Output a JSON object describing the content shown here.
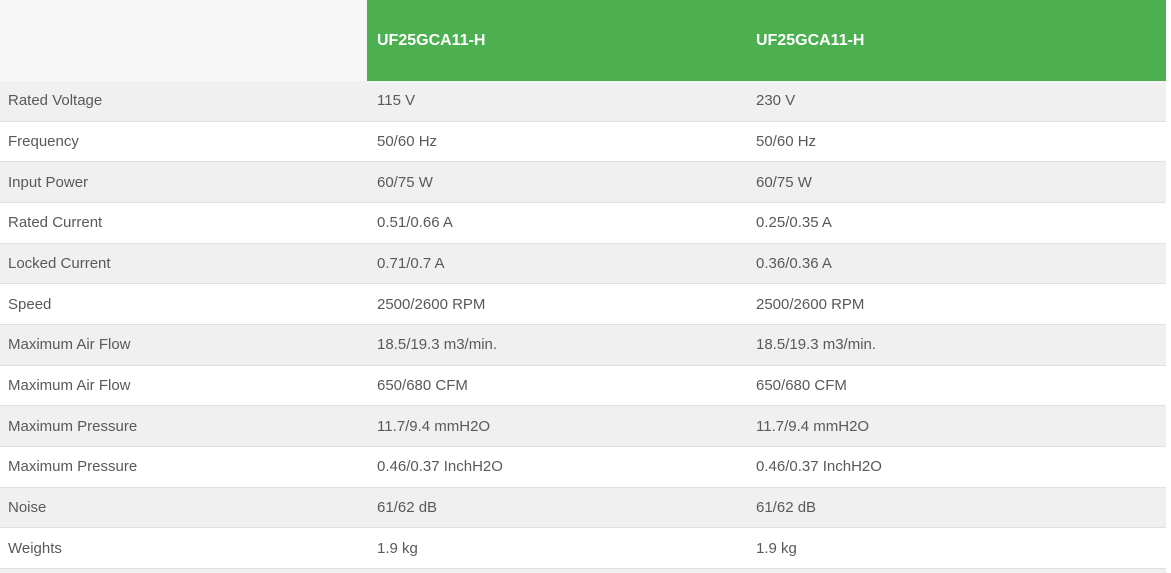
{
  "accent_color": "#4caf50",
  "table": {
    "header": {
      "col2": "UF25GCA11-H",
      "col3": "UF25GCA11-H"
    },
    "rows": [
      {
        "label": "Rated Voltage",
        "v1": "115 V",
        "v2": "230 V"
      },
      {
        "label": "Frequency",
        "v1": "50/60 Hz",
        "v2": "50/60 Hz"
      },
      {
        "label": "Input Power",
        "v1": "60/75 W",
        "v2": "60/75 W"
      },
      {
        "label": "Rated Current",
        "v1": "0.51/0.66 A",
        "v2": "0.25/0.35 A"
      },
      {
        "label": "Locked Current",
        "v1": "0.71/0.7 A",
        "v2": "0.36/0.36 A"
      },
      {
        "label": "Speed",
        "v1": "2500/2600 RPM",
        "v2": "2500/2600 RPM"
      },
      {
        "label": "Maximum Air Flow",
        "v1": "18.5/19.3 m3/min.",
        "v2": "18.5/19.3 m3/min."
      },
      {
        "label": "Maximum Air Flow",
        "v1": "650/680 CFM",
        "v2": "650/680 CFM"
      },
      {
        "label": "Maximum Pressure",
        "v1": "11.7/9.4 mmH2O",
        "v2": "11.7/9.4 mmH2O"
      },
      {
        "label": "Maximum Pressure",
        "v1": "0.46/0.37 InchH2O",
        "v2": "0.46/0.37 InchH2O"
      },
      {
        "label": "Noise",
        "v1": "61/62 dB",
        "v2": "61/62 dB"
      },
      {
        "label": "Weights",
        "v1": "1.9 kg",
        "v2": "1.9 kg"
      }
    ]
  }
}
